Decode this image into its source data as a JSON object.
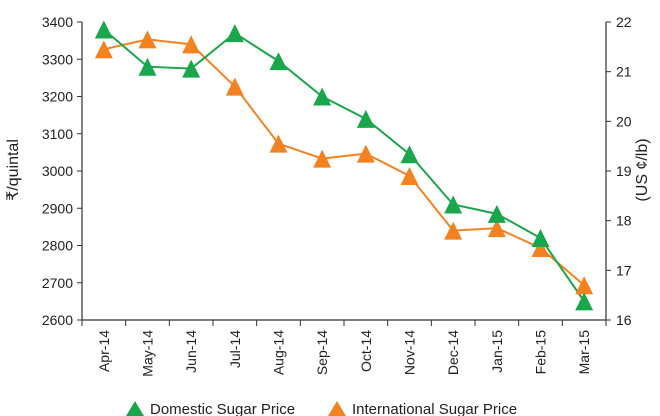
{
  "chart_data": {
    "type": "line",
    "categories": [
      "Apr-14",
      "May-14",
      "Jun-14",
      "Jul-14",
      "Aug-14",
      "Sep-14",
      "Oct-14",
      "Nov-14",
      "Dec-14",
      "Jan-15",
      "Feb-15",
      "Mar-15"
    ],
    "ylabel": "₹/quintal",
    "ylabel_right": "(US ¢/lb)",
    "ylim": [
      2600,
      3400
    ],
    "ylim_right": [
      16,
      22
    ],
    "yticks": [
      2600,
      2700,
      2800,
      2900,
      3000,
      3100,
      3200,
      3300,
      3400
    ],
    "yticks_right": [
      16,
      17,
      18,
      19,
      20,
      21,
      22
    ],
    "legend_position": "bottom",
    "grid": false,
    "series": [
      {
        "name": "Domestic Sugar Price",
        "axis": "left",
        "color": "#1aa64a",
        "marker": "triangle",
        "values": [
          3380,
          3280,
          3275,
          3370,
          3295,
          3200,
          3140,
          3045,
          2910,
          2885,
          2820,
          2650
        ]
      },
      {
        "name": "International Sugar Price",
        "axis": "right",
        "color": "#f58220",
        "marker": "triangle",
        "values": [
          21.45,
          21.65,
          21.55,
          20.7,
          19.55,
          19.25,
          19.35,
          18.9,
          17.8,
          17.85,
          17.45,
          16.7
        ]
      }
    ]
  }
}
